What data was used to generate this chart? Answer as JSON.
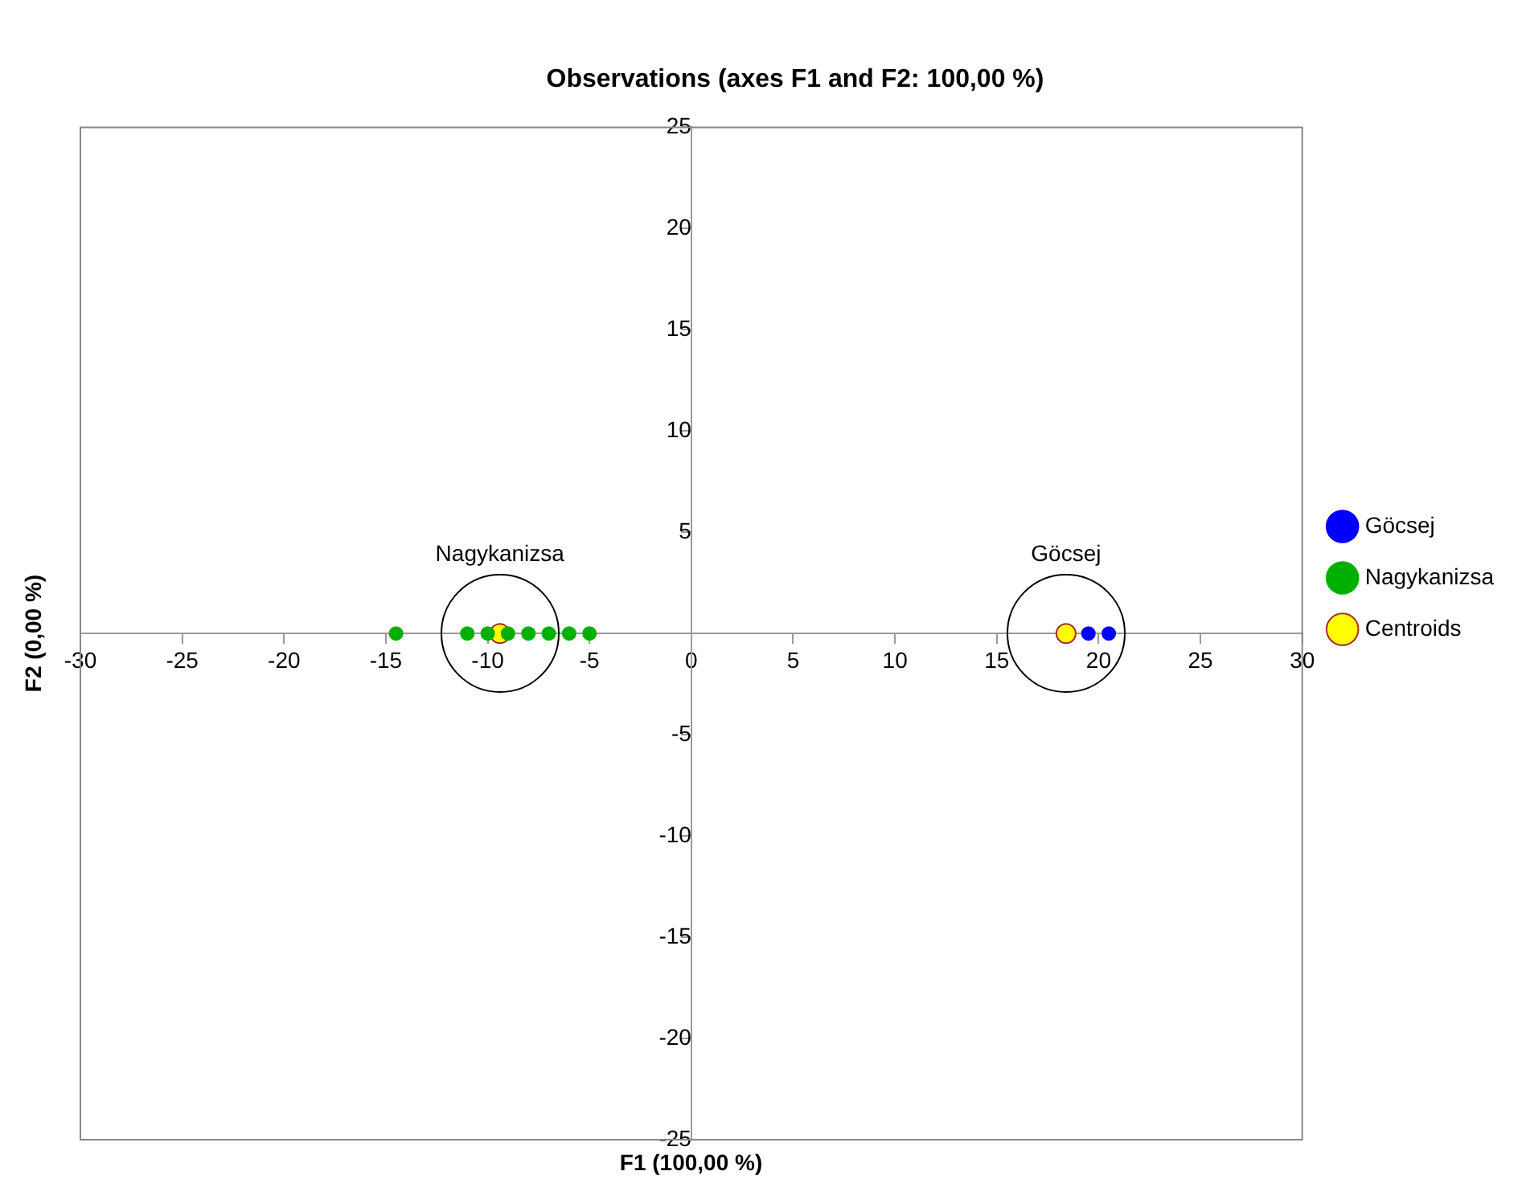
{
  "chart_data": {
    "type": "scatter",
    "title": "Observations (axes F1 and F2: 100,00 %)",
    "xlabel": "F1 (100,00 %)",
    "ylabel": "F2 (0,00 %)",
    "xlim": [
      -30,
      30
    ],
    "xticks": [
      -30,
      -25,
      -20,
      -15,
      -10,
      -5,
      0,
      5,
      10,
      15,
      20,
      25,
      30
    ],
    "ylim": [
      -25,
      25
    ],
    "yticks": [
      -25,
      -20,
      -15,
      -10,
      -5,
      {
        "value": 0,
        "label": null
      },
      5,
      10,
      15,
      20,
      25
    ],
    "grid": false,
    "legend": "right",
    "marker": "circle",
    "series": [
      {
        "name": "Göcsej",
        "color": "#0000ff",
        "x": [
          19.5,
          20.5
        ],
        "values": [
          0,
          0
        ]
      },
      {
        "name": "Nagykanizsa",
        "color": "#00b000",
        "x": [
          -14.5,
          -11,
          -10,
          -9,
          -8,
          -7,
          -6,
          -5
        ],
        "values": [
          0,
          0,
          0,
          0,
          0,
          0,
          0,
          0
        ]
      },
      {
        "name": "Centroids",
        "color": "#ffff00",
        "x": [
          18.4,
          -9.4
        ],
        "values": [
          0,
          0
        ],
        "value_labels": [
          "Göcsej",
          "Nagykanizsa"
        ]
      }
    ]
  }
}
